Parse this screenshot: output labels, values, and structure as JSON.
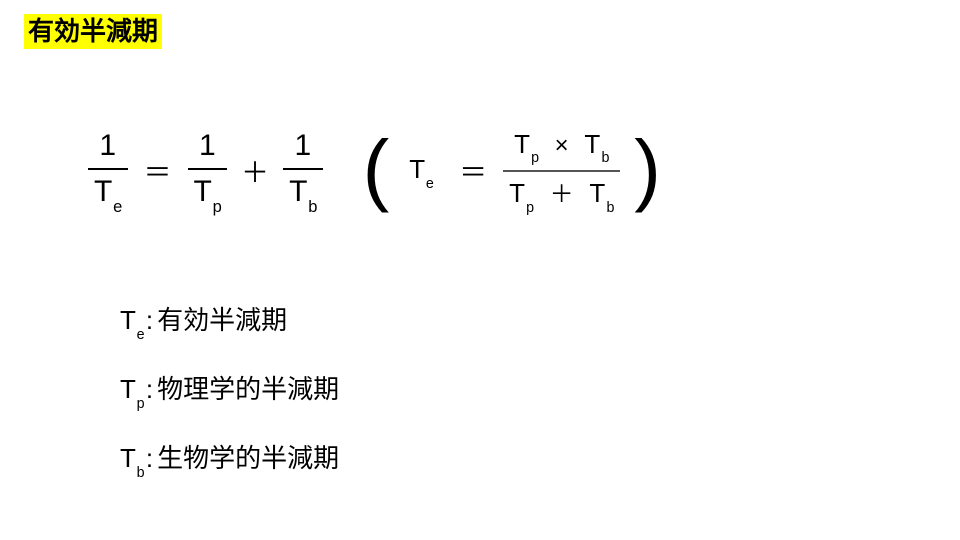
{
  "title": "有効半減期",
  "formula1": {
    "left": {
      "num": "1",
      "den_base": "T",
      "den_sub": "e"
    },
    "eq": "＝",
    "mid": {
      "num": "1",
      "den_base": "T",
      "den_sub": "p"
    },
    "plus": "＋",
    "right": {
      "num": "1",
      "den_base": "T",
      "den_sub": "b"
    }
  },
  "formula2": {
    "paren_left": "(",
    "lhs_base": "T",
    "lhs_sub": "e",
    "eq": "＝",
    "num_a_base": "T",
    "num_a_sub": "p",
    "times": "×",
    "num_b_base": "T",
    "num_b_sub": "b",
    "den_a_base": "T",
    "den_a_sub": "p",
    "plus": "＋",
    "den_b_base": "T",
    "den_b_sub": "b",
    "paren_right": ")"
  },
  "definitions": [
    {
      "base": "T",
      "sub": "e",
      "colon": ":",
      "text": "有効半減期"
    },
    {
      "base": "T",
      "sub": "p",
      "colon": ":",
      "text": "物理学的半減期"
    },
    {
      "base": "T",
      "sub": "b",
      "colon": ":",
      "text": "生物学的半減期"
    }
  ],
  "style": {
    "background": "#ffffff",
    "title_highlight": "#ffff00",
    "text_color": "#000000",
    "bar_color": "#000000",
    "title_fontsize": 26,
    "formula_fontsize": 30,
    "paren_fontsize": 80,
    "def_fontsize": 26
  }
}
